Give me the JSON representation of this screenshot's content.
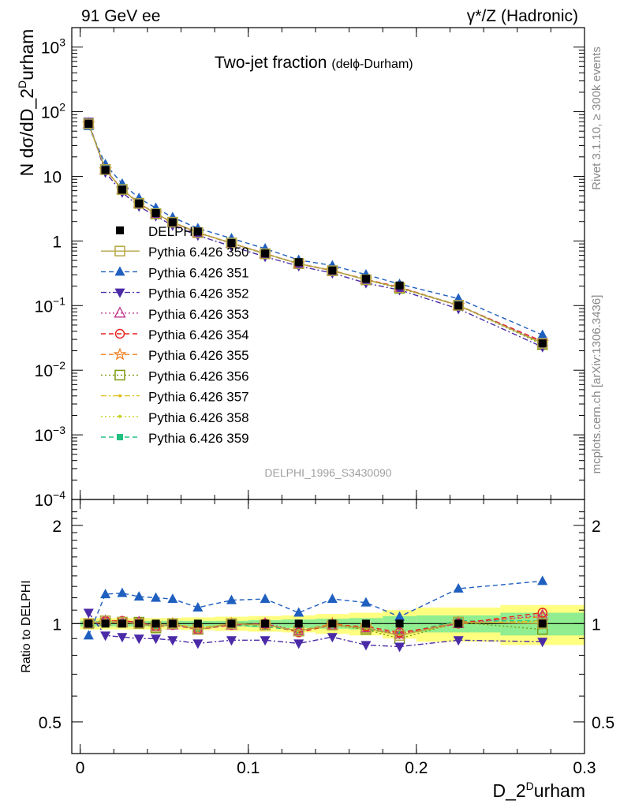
{
  "header": {
    "left": "91 GeV ee",
    "right": "γ*/Z (Hadronic)"
  },
  "side_labels": {
    "rivet": "Rivet 3.1.10, ≥ 300k events",
    "mcplots": "mcplots.cern.ch [arXiv:1306.3436]"
  },
  "chart_data": [
    {
      "type": "line",
      "title": "Two-jet fraction",
      "subtitle": "(delϕ-Durham)",
      "watermark": "DELPHI_1996_S3430090",
      "ylabel": "N dσ/dD_2Durham",
      "ylabel_parts": [
        "N dσ/dD_2",
        "D",
        "urham"
      ],
      "yscale": "log",
      "ylim": [
        0.0001,
        2000
      ],
      "yticks": [
        {
          "v": 1000,
          "base": "10",
          "exp": "3"
        },
        {
          "v": 100,
          "base": "10",
          "exp": "2"
        },
        {
          "v": 10,
          "base": "10",
          "exp": ""
        },
        {
          "v": 1,
          "base": "1",
          "exp": ""
        },
        {
          "v": 0.1,
          "base": "10",
          "exp": "−1"
        },
        {
          "v": 0.01,
          "base": "10",
          "exp": "−2"
        },
        {
          "v": 0.001,
          "base": "10",
          "exp": "−3"
        },
        {
          "v": 0.0001,
          "base": "10",
          "exp": "−4"
        }
      ],
      "xlim": [
        -0.005,
        0.3
      ],
      "legend_position": "middle-left",
      "x": [
        0.005,
        0.015,
        0.025,
        0.035,
        0.045,
        0.055,
        0.07,
        0.09,
        0.11,
        0.13,
        0.15,
        0.17,
        0.19,
        0.225,
        0.275
      ],
      "data": {
        "name": "DELPHI",
        "color": "#000000",
        "values": [
          65,
          12.5,
          6.2,
          3.8,
          2.7,
          1.95,
          1.4,
          0.93,
          0.64,
          0.47,
          0.35,
          0.26,
          0.205,
          0.1,
          0.026
        ]
      },
      "series": [
        {
          "name": "Pythia 6.426 350",
          "color": "#b5a642",
          "marker": "open-square",
          "dash": "solid",
          "ratio": [
            1.0,
            1.02,
            1.01,
            1.0,
            0.98,
            1.0,
            0.96,
            1.0,
            0.99,
            0.95,
            0.99,
            0.97,
            0.92,
            1.01,
            1.0
          ]
        },
        {
          "name": "Pythia 6.426 351",
          "color": "#1f5fbf",
          "marker": "filled-triangle-up",
          "dash": "dashed",
          "ratio": [
            0.92,
            1.23,
            1.24,
            1.21,
            1.2,
            1.19,
            1.12,
            1.18,
            1.19,
            1.08,
            1.19,
            1.16,
            1.05,
            1.28,
            1.35
          ]
        },
        {
          "name": "Pythia 6.426 352",
          "color": "#4b2aa8",
          "marker": "filled-triangle-down",
          "dash": "dashdot",
          "ratio": [
            1.08,
            0.92,
            0.91,
            0.9,
            0.9,
            0.89,
            0.87,
            0.89,
            0.89,
            0.87,
            0.91,
            0.86,
            0.85,
            0.89,
            0.88
          ]
        },
        {
          "name": "Pythia 6.426 353",
          "color": "#c0308c",
          "marker": "open-triangle-up",
          "dash": "dotted",
          "ratio": [
            1.0,
            1.02,
            1.01,
            1.01,
            0.98,
            0.99,
            0.96,
            0.99,
            1.0,
            0.95,
            0.99,
            0.97,
            0.93,
            1.0,
            1.06
          ]
        },
        {
          "name": "Pythia 6.426 354",
          "color": "#e8201c",
          "marker": "open-circle",
          "dash": "dashed",
          "ratio": [
            1.0,
            1.02,
            1.02,
            1.01,
            0.98,
            0.99,
            0.96,
            0.99,
            1.0,
            0.94,
            0.99,
            0.98,
            0.94,
            1.0,
            1.08
          ]
        },
        {
          "name": "Pythia 6.426 355",
          "color": "#f08020",
          "marker": "open-star",
          "dash": "dashed",
          "ratio": [
            1.0,
            1.01,
            1.01,
            1.0,
            0.98,
            1.0,
            0.96,
            1.0,
            0.99,
            0.95,
            1.0,
            0.97,
            0.93,
            1.01,
            1.05
          ]
        },
        {
          "name": "Pythia 6.426 356",
          "color": "#7a9a10",
          "marker": "open-square",
          "dash": "dotted",
          "ratio": [
            1.0,
            1.02,
            1.01,
            1.01,
            0.97,
            1.0,
            0.96,
            1.0,
            0.99,
            0.95,
            0.99,
            0.96,
            0.9,
            1.01,
            0.96
          ]
        },
        {
          "name": "Pythia 6.426 357",
          "color": "#e0c020",
          "marker": "small-dot",
          "dash": "dashdot",
          "ratio": [
            1.0,
            1.01,
            1.01,
            1.0,
            0.98,
            1.0,
            0.97,
            1.0,
            0.99,
            0.95,
            0.99,
            0.97,
            0.92,
            1.0,
            1.02
          ]
        },
        {
          "name": "Pythia 6.426 358",
          "color": "#c8d020",
          "marker": "small-dot",
          "dash": "dotted",
          "ratio": [
            1.0,
            1.02,
            1.01,
            1.0,
            0.98,
            1.0,
            0.96,
            0.99,
            0.99,
            0.95,
            0.99,
            0.96,
            0.92,
            1.01,
            1.01
          ]
        },
        {
          "name": "Pythia 6.426 359",
          "color": "#20c080",
          "marker": "filled-square",
          "dash": "dashed",
          "ratio": [
            1.0,
            1.02,
            1.01,
            1.0,
            0.98,
            1.0,
            0.96,
            0.99,
            0.98,
            0.95,
            1.0,
            0.96,
            0.93,
            1.02,
            1.02
          ]
        }
      ]
    },
    {
      "type": "line",
      "ylabel": "Ratio to DELPHI",
      "yscale": "log",
      "ylim": [
        0.4,
        2.4
      ],
      "yticks": [
        {
          "v": 0.5,
          "label": "0.5"
        },
        {
          "v": 1,
          "label": "1"
        },
        {
          "v": 2,
          "label": "2"
        }
      ],
      "xlabel": "D_2Durham",
      "xlabel_parts": [
        "D_2",
        "D",
        "urham"
      ],
      "xlim": [
        -0.005,
        0.3
      ],
      "xticks": [
        {
          "v": 0,
          "label": "0"
        },
        {
          "v": 0.1,
          "label": "0.1"
        },
        {
          "v": 0.2,
          "label": "0.2"
        },
        {
          "v": 0.3,
          "label": "0.3"
        }
      ],
      "reference_line": 1,
      "uncertainty_bands": {
        "edges": [
          0,
          0.01,
          0.02,
          0.03,
          0.04,
          0.05,
          0.06,
          0.08,
          0.1,
          0.12,
          0.14,
          0.16,
          0.18,
          0.2,
          0.25,
          0.3
        ],
        "stat": [
          0.02,
          0.02,
          0.02,
          0.02,
          0.02,
          0.02,
          0.02,
          0.02,
          0.025,
          0.03,
          0.035,
          0.04,
          0.055,
          0.06,
          0.08
        ],
        "total": [
          0.04,
          0.04,
          0.04,
          0.04,
          0.04,
          0.04,
          0.045,
          0.05,
          0.055,
          0.06,
          0.07,
          0.08,
          0.1,
          0.12,
          0.14
        ],
        "stat_color": "#90ee90",
        "total_color": "#ffff80"
      }
    }
  ]
}
